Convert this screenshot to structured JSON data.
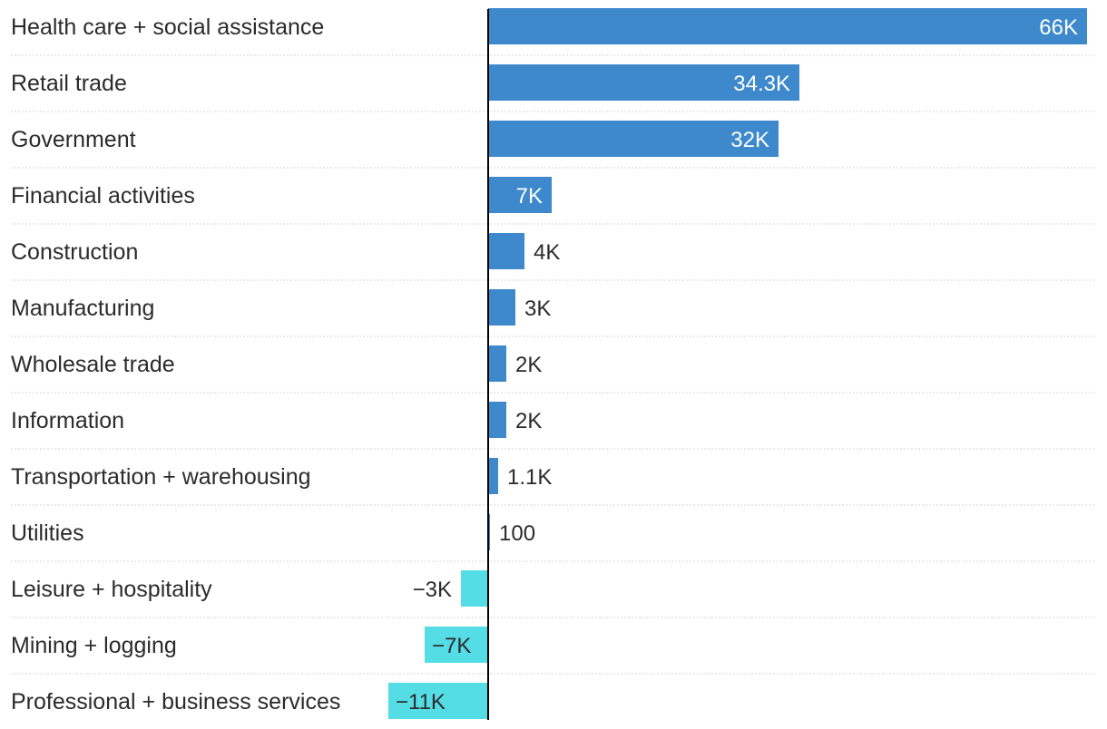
{
  "chart_data": {
    "type": "bar",
    "orientation": "horizontal",
    "categories": [
      "Health care + social assistance",
      "Retail trade",
      "Government",
      "Financial activities",
      "Construction",
      "Manufacturing",
      "Wholesale trade",
      "Information",
      "Transportation + warehousing",
      "Utilities",
      "Leisure + hospitality",
      "Mining + logging",
      "Professional + business services"
    ],
    "values": [
      66000,
      34300,
      32000,
      7000,
      4000,
      3000,
      2000,
      2000,
      1100,
      100,
      -3000,
      -7000,
      -11000
    ],
    "value_labels": [
      "66K",
      "34.3K",
      "32K",
      "7K",
      "4K",
      "3K",
      "2K",
      "2K",
      "1.1K",
      "100",
      "−3K",
      "−7K",
      "−11K"
    ],
    "xlim": [
      -11000,
      67000
    ],
    "colors": {
      "positive": "#3d89cc",
      "negative": "#55dde6",
      "axis": "#000000",
      "grid": "#d4d4d4"
    }
  }
}
